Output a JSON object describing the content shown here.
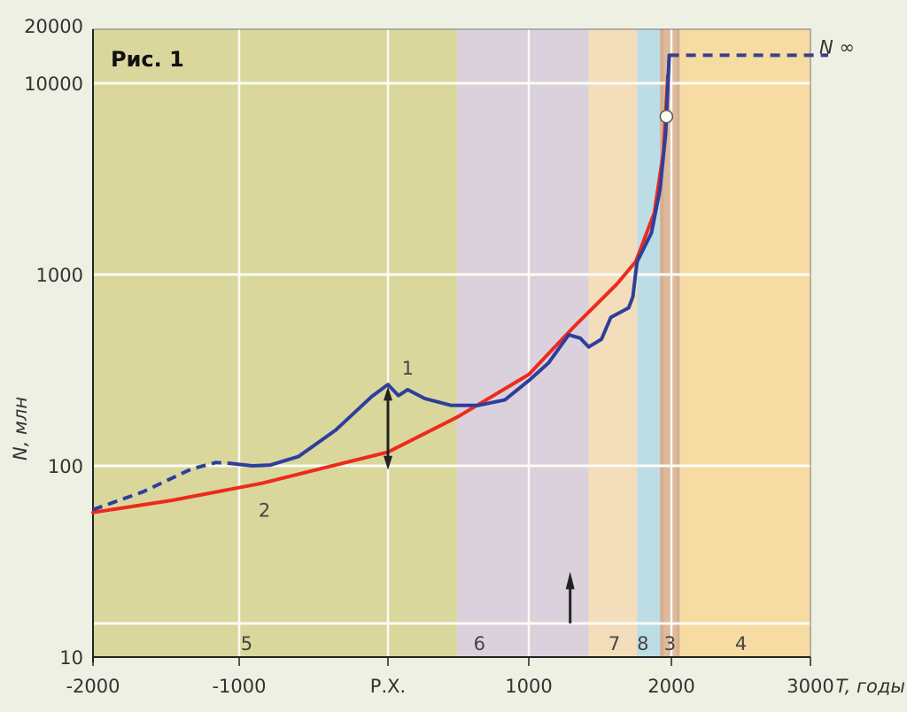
{
  "chart_data": {
    "type": "line",
    "title": "Рис. 1",
    "xlabel": "T, годы",
    "ylabel": "N, млн",
    "yscale": "log",
    "xlim": [
      -2000,
      3000
    ],
    "ylim": [
      10,
      20000
    ],
    "x_ticks": [
      {
        "value": -2000,
        "label": "-2000"
      },
      {
        "value": -1000,
        "label": "-1000"
      },
      {
        "value": 0,
        "label": "Р.Х."
      },
      {
        "value": 1000,
        "label": "1000"
      },
      {
        "value": 2000,
        "label": "2000"
      },
      {
        "value": 3000,
        "label": "3000"
      }
    ],
    "y_ticks": [
      {
        "value": 10,
        "label": "10"
      },
      {
        "value": 100,
        "label": "100"
      },
      {
        "value": 1000,
        "label": "1000"
      },
      {
        "value": 10000,
        "label": "10000"
      },
      {
        "value": 20000,
        "label": "20000"
      }
    ],
    "grid": true,
    "bands": [
      {
        "from": -2000,
        "to": 490,
        "label": "5",
        "label_at": -950,
        "color": "#d9d79c"
      },
      {
        "from": 490,
        "to": 1420,
        "label": "6",
        "label_at": 650,
        "color": "#dad1dc"
      },
      {
        "from": 1420,
        "to": 1760,
        "label": "7",
        "label_at": 1600,
        "color": "#f3ddbb"
      },
      {
        "from": 1760,
        "to": 1920,
        "label": "8",
        "label_at": 1800,
        "color": "#bddde6"
      },
      {
        "from": 1920,
        "to": 2060,
        "label": "3",
        "label_at": 1990,
        "color": "#d6ae90"
      },
      {
        "from": 2060,
        "to": 3000,
        "label": "4",
        "label_at": 2500,
        "color": "#f6dca2"
      }
    ],
    "series": [
      {
        "name": "1",
        "label": "1",
        "color": "#2e3f9a",
        "dashed_points": [
          [
            -2000,
            59
          ],
          [
            -1660,
            73
          ],
          [
            -1330,
            96
          ],
          [
            -1160,
            104
          ],
          [
            -1060,
            103
          ]
        ],
        "points": [
          [
            -1060,
            103
          ],
          [
            -910,
            100
          ],
          [
            -790,
            101
          ],
          [
            -600,
            112
          ],
          [
            -350,
            154
          ],
          [
            -110,
            230
          ],
          [
            0,
            266
          ],
          [
            75,
            233
          ],
          [
            140,
            250
          ],
          [
            260,
            225
          ],
          [
            450,
            207
          ],
          [
            640,
            207
          ],
          [
            830,
            221
          ],
          [
            1010,
            283
          ],
          [
            1140,
            346
          ],
          [
            1280,
            484
          ],
          [
            1360,
            465
          ],
          [
            1420,
            418
          ],
          [
            1510,
            459
          ],
          [
            1575,
            597
          ],
          [
            1700,
            670
          ],
          [
            1730,
            765
          ],
          [
            1750,
            1030
          ],
          [
            1760,
            1170
          ],
          [
            1860,
            1650
          ],
          [
            1920,
            2770
          ],
          [
            1960,
            5500
          ],
          [
            1965,
            6700
          ],
          [
            1985,
            14000
          ]
        ],
        "asymptote": {
          "from": 1985,
          "to": 3000,
          "value": 14000,
          "label": "N ∞"
        }
      },
      {
        "name": "2",
        "label": "2",
        "color": "#ee2a1c",
        "points": [
          [
            -2000,
            57
          ],
          [
            -1460,
            66
          ],
          [
            -850,
            81
          ],
          [
            0,
            118
          ],
          [
            500,
            181
          ],
          [
            1000,
            300
          ],
          [
            1310,
            527
          ],
          [
            1620,
            895
          ],
          [
            1750,
            1170
          ],
          [
            1880,
            2100
          ],
          [
            1945,
            4400
          ],
          [
            1975,
            11000
          ]
        ]
      }
    ],
    "markers": [
      {
        "type": "circle",
        "x": 1965,
        "y": 6700
      },
      {
        "type": "double-arrow",
        "x": 0,
        "from": 95,
        "to": 260
      },
      {
        "type": "up-arrow",
        "x": 1290,
        "from": 15,
        "to": 28
      }
    ],
    "strip_divider": 15
  }
}
